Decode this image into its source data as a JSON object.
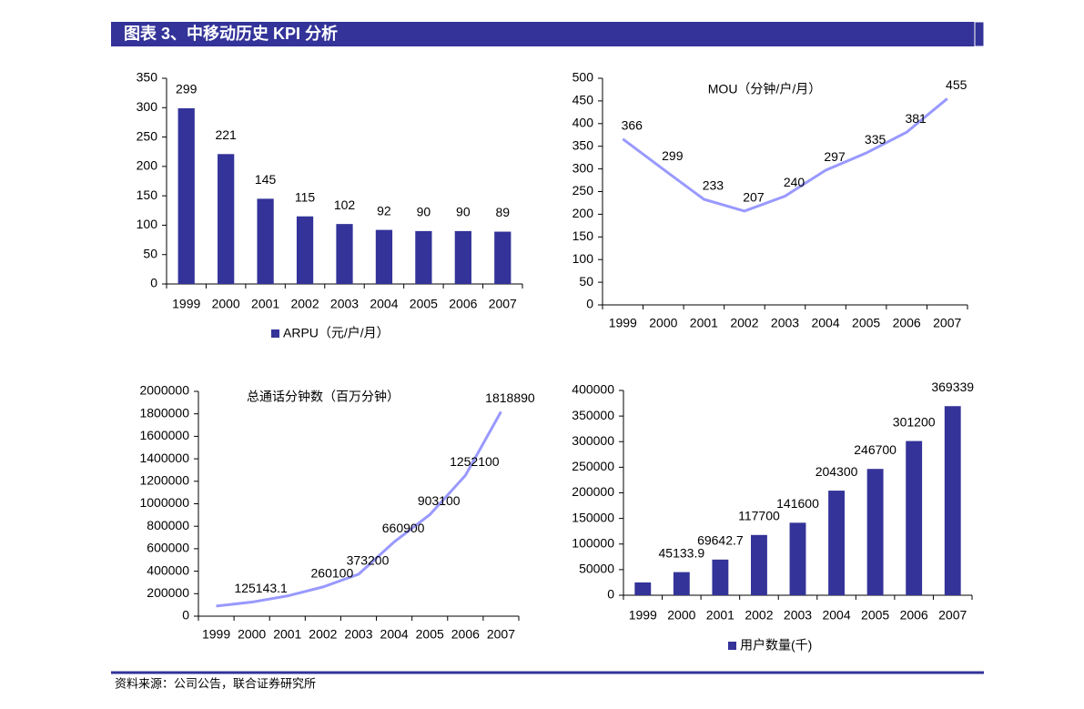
{
  "header": {
    "title": "图表 3、中移动历史 KPI 分析"
  },
  "source": "资料来源：公司公告，联合证券研究所",
  "chart_data": [
    {
      "type": "bar",
      "categories": [
        "1999",
        "2000",
        "2001",
        "2002",
        "2003",
        "2004",
        "2005",
        "2006",
        "2007"
      ],
      "series": [
        {
          "name": "ARPU（元/户/月）",
          "color": "#333399",
          "values": [
            299,
            221,
            145,
            115,
            102,
            92,
            90,
            90,
            89
          ]
        }
      ],
      "ylim": [
        0,
        350
      ],
      "yticks": [
        0,
        50,
        100,
        150,
        200,
        250,
        300,
        350
      ]
    },
    {
      "type": "line",
      "title": "MOU（分钟/户/月）",
      "categories": [
        "1999",
        "2000",
        "2001",
        "2002",
        "2003",
        "2004",
        "2005",
        "2006",
        "2007"
      ],
      "series": [
        {
          "color": "#9999ff",
          "values": [
            366,
            299,
            233,
            207,
            240,
            297,
            335,
            381,
            455
          ]
        }
      ],
      "ylim": [
        0,
        500
      ],
      "yticks": [
        0,
        50,
        100,
        150,
        200,
        250,
        300,
        350,
        400,
        450,
        500
      ]
    },
    {
      "type": "line",
      "title": "总通话分钟数（百万分钟）",
      "categories": [
        "1999",
        "2000",
        "2001",
        "2002",
        "2003",
        "2004",
        "2005",
        "2006",
        "2007"
      ],
      "series": [
        {
          "color": "#9999ff",
          "values": [
            90000,
            125143.1,
            180000,
            260100,
            373200,
            660900,
            903100,
            1252100,
            1818890
          ],
          "value_labels": [
            null,
            "125143.1",
            null,
            "260100",
            "373200",
            "660900",
            "903100",
            "1252100",
            "1818890"
          ]
        }
      ],
      "ylim": [
        0,
        2000000
      ],
      "yticks": [
        0,
        200000,
        400000,
        600000,
        800000,
        1000000,
        1200000,
        1400000,
        1600000,
        1800000,
        2000000
      ]
    },
    {
      "type": "bar",
      "categories": [
        "1999",
        "2000",
        "2001",
        "2002",
        "2003",
        "2004",
        "2005",
        "2006",
        "2007"
      ],
      "series": [
        {
          "name": "用户数量(千)",
          "color": "#333399",
          "values": [
            25000,
            45133.9,
            69642.7,
            117700,
            141600,
            204300,
            246700,
            301200,
            369339
          ],
          "value_labels": [
            null,
            "45133.9",
            "69642.7",
            "117700",
            "141600",
            "204300",
            "246700",
            "301200",
            "369339"
          ]
        }
      ],
      "ylim": [
        0,
        400000
      ],
      "yticks": [
        0,
        50000,
        100000,
        150000,
        200000,
        250000,
        300000,
        350000,
        400000
      ]
    }
  ]
}
